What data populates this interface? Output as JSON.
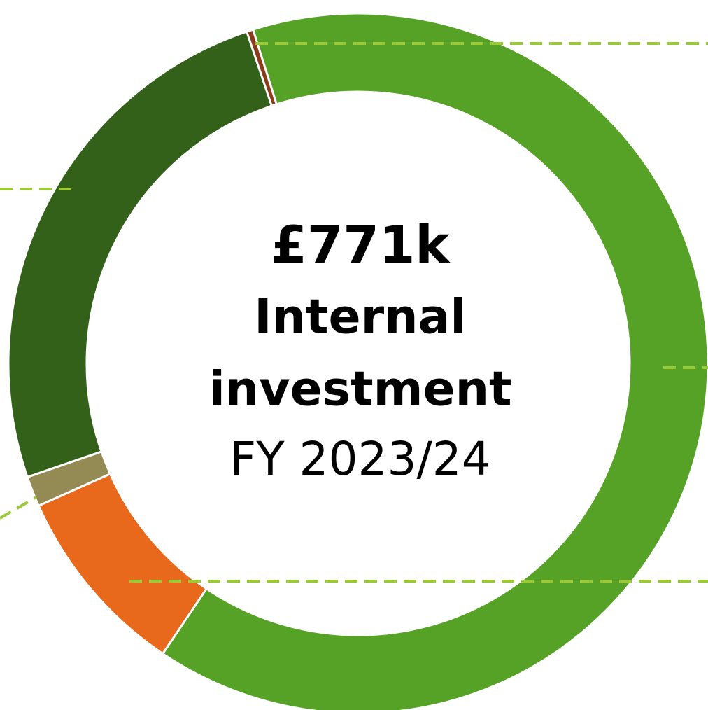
{
  "chart_data": {
    "type": "donut",
    "center_text": [
      "£771k",
      "Internal",
      "investment",
      "FY 2023/24"
    ],
    "categories": [
      null,
      null,
      null,
      null,
      null
    ],
    "values": [
      64.3,
      8.9,
      1.4,
      25.1,
      0.3
    ],
    "colors": [
      "#56a226",
      "#e8681c",
      "#948a54",
      "#336119",
      "#8b3a1a"
    ]
  }
}
